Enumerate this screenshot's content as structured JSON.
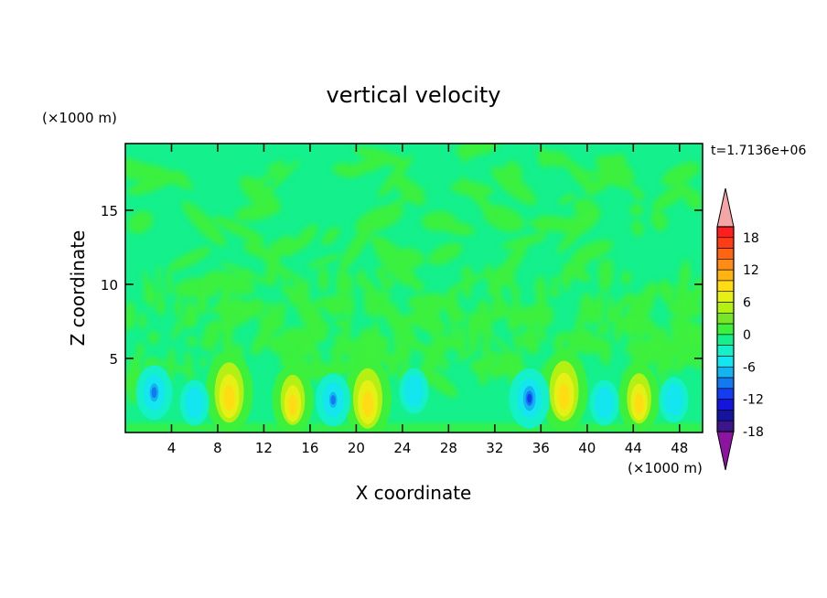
{
  "chart_data": {
    "type": "heatmap",
    "title": "vertical velocity",
    "xlabel": "X coordinate",
    "ylabel": "Z coordinate",
    "x_unit": "(×1000 m)",
    "y_unit": "(×1000 m)",
    "time_label": "t=1.7136e+06",
    "xlim": [
      0,
      50
    ],
    "ylim": [
      0,
      19.5
    ],
    "x_ticks": [
      4,
      8,
      12,
      16,
      20,
      24,
      28,
      32,
      36,
      40,
      44,
      48
    ],
    "y_ticks": [
      5,
      10,
      15
    ],
    "colorbar": {
      "ticks": [
        18,
        12,
        6,
        0,
        -6,
        -12,
        -18
      ],
      "levels": [
        {
          "color": "#f4a6a6"
        },
        {
          "color": "#ff1e1e"
        },
        {
          "color": "#ff3c14"
        },
        {
          "color": "#ff6414"
        },
        {
          "color": "#ff8c14"
        },
        {
          "color": "#ffb414"
        },
        {
          "color": "#ffdc14"
        },
        {
          "color": "#e6f014"
        },
        {
          "color": "#b4f014"
        },
        {
          "color": "#78e628"
        },
        {
          "color": "#3cf03c"
        },
        {
          "color": "#14f08c"
        },
        {
          "color": "#14f0c8"
        },
        {
          "color": "#14e6f0"
        },
        {
          "color": "#14b4f0"
        },
        {
          "color": "#1478f0"
        },
        {
          "color": "#143cf0"
        },
        {
          "color": "#1414dc"
        },
        {
          "color": "#1414a0"
        },
        {
          "color": "#3c148c"
        },
        {
          "color": "#8c14a0"
        }
      ]
    },
    "features": [
      {
        "kind": "updraft",
        "x": 9,
        "z": 2.7,
        "peak": 6
      },
      {
        "kind": "updraft",
        "x": 14.5,
        "z": 2.2,
        "peak": 5
      },
      {
        "kind": "updraft",
        "x": 21,
        "z": 2.3,
        "peak": 6
      },
      {
        "kind": "updraft",
        "x": 38,
        "z": 2.8,
        "peak": 6
      },
      {
        "kind": "updraft",
        "x": 44.5,
        "z": 2.3,
        "peak": 5
      },
      {
        "kind": "downdraft",
        "x": 2.5,
        "z": 2.7,
        "peak": -8
      },
      {
        "kind": "downdraft",
        "x": 6,
        "z": 2.0,
        "peak": -3
      },
      {
        "kind": "downdraft",
        "x": 18,
        "z": 2.2,
        "peak": -7
      },
      {
        "kind": "downdraft",
        "x": 25,
        "z": 2.8,
        "peak": -3
      },
      {
        "kind": "downdraft",
        "x": 35,
        "z": 2.3,
        "peak": -11
      },
      {
        "kind": "downdraft",
        "x": 41.5,
        "z": 2.0,
        "peak": -3
      },
      {
        "kind": "downdraft",
        "x": 47.5,
        "z": 2.2,
        "peak": -3
      }
    ]
  }
}
